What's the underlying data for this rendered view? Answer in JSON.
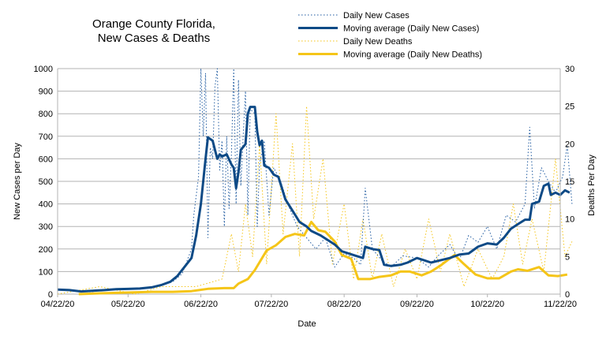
{
  "chart_data": {
    "type": "line",
    "title_line1": "Orange County Florida,",
    "title_line2": "New Cases & Deaths",
    "xlabel": "Date",
    "ylabel_left": "New Cases per Day",
    "ylabel_right": "Deaths Per Day",
    "x_ticks": [
      "04/22/20",
      "05/22/20",
      "06/22/20",
      "07/22/20",
      "08/22/20",
      "09/22/20",
      "10/22/20",
      "11/22/20"
    ],
    "y_left_ticks": [
      0,
      100,
      200,
      300,
      400,
      500,
      600,
      700,
      800,
      900,
      1000
    ],
    "y_right_ticks": [
      0,
      5,
      10,
      15,
      20,
      25,
      30
    ],
    "ylim_left": [
      0,
      1000
    ],
    "ylim_right": [
      0,
      30
    ],
    "grid": true,
    "legend_position": "top-right",
    "series": [
      {
        "name": "Daily New Cases",
        "axis": "left",
        "style": "dotted",
        "color": "#1f5aa0",
        "points": [
          [
            "2020-04-22",
            22
          ],
          [
            "2020-04-29",
            15
          ],
          [
            "2020-05-06",
            10
          ],
          [
            "2020-05-13",
            18
          ],
          [
            "2020-05-20",
            25
          ],
          [
            "2020-05-27",
            22
          ],
          [
            "2020-06-03",
            35
          ],
          [
            "2020-06-10",
            55
          ],
          [
            "2020-06-14",
            90
          ],
          [
            "2020-06-18",
            200
          ],
          [
            "2020-06-19",
            350
          ],
          [
            "2020-06-21",
            520
          ],
          [
            "2020-06-22",
            1000
          ],
          [
            "2020-06-23",
            700
          ],
          [
            "2020-06-24",
            980
          ],
          [
            "2020-06-25",
            250
          ],
          [
            "2020-06-26",
            650
          ],
          [
            "2020-06-27",
            600
          ],
          [
            "2020-06-28",
            920
          ],
          [
            "2020-06-29",
            1000
          ],
          [
            "2020-06-30",
            550
          ],
          [
            "2020-07-01",
            680
          ],
          [
            "2020-07-02",
            300
          ],
          [
            "2020-07-03",
            700
          ],
          [
            "2020-07-04",
            380
          ],
          [
            "2020-07-05",
            620
          ],
          [
            "2020-07-06",
            1000
          ],
          [
            "2020-07-07",
            400
          ],
          [
            "2020-07-08",
            950
          ],
          [
            "2020-07-09",
            480
          ],
          [
            "2020-07-10",
            700
          ],
          [
            "2020-07-11",
            900
          ],
          [
            "2020-07-12",
            350
          ],
          [
            "2020-07-13",
            820
          ],
          [
            "2020-07-15",
            800
          ],
          [
            "2020-07-16",
            300
          ],
          [
            "2020-07-17",
            580
          ],
          [
            "2020-07-19",
            680
          ],
          [
            "2020-07-21",
            350
          ],
          [
            "2020-07-23",
            560
          ],
          [
            "2020-07-26",
            500
          ],
          [
            "2020-07-29",
            400
          ],
          [
            "2020-08-02",
            300
          ],
          [
            "2020-08-06",
            250
          ],
          [
            "2020-08-10",
            200
          ],
          [
            "2020-08-14",
            250
          ],
          [
            "2020-08-18",
            120
          ],
          [
            "2020-08-22",
            180
          ],
          [
            "2020-08-26",
            160
          ],
          [
            "2020-08-29",
            130
          ],
          [
            "2020-08-31",
            470
          ],
          [
            "2020-09-03",
            200
          ],
          [
            "2020-09-07",
            150
          ],
          [
            "2020-09-11",
            120
          ],
          [
            "2020-09-16",
            170
          ],
          [
            "2020-09-22",
            160
          ],
          [
            "2020-09-27",
            120
          ],
          [
            "2020-10-01",
            170
          ],
          [
            "2020-10-06",
            220
          ],
          [
            "2020-10-10",
            150
          ],
          [
            "2020-10-14",
            260
          ],
          [
            "2020-10-18",
            230
          ],
          [
            "2020-10-22",
            300
          ],
          [
            "2020-10-26",
            200
          ],
          [
            "2020-10-30",
            350
          ],
          [
            "2020-11-03",
            320
          ],
          [
            "2020-11-07",
            400
          ],
          [
            "2020-11-09",
            740
          ],
          [
            "2020-11-11",
            380
          ],
          [
            "2020-11-14",
            560
          ],
          [
            "2020-11-17",
            500
          ],
          [
            "2020-11-20",
            450
          ],
          [
            "2020-11-23",
            520
          ],
          [
            "2020-11-25",
            660
          ],
          [
            "2020-11-27",
            400
          ]
        ]
      },
      {
        "name": "Moving average (Daily New Cases)",
        "axis": "left",
        "style": "solid",
        "color": "#0e4a86",
        "points": [
          [
            "2020-04-22",
            20
          ],
          [
            "2020-04-27",
            18
          ],
          [
            "2020-05-02",
            12
          ],
          [
            "2020-05-07",
            15
          ],
          [
            "2020-05-12",
            18
          ],
          [
            "2020-05-17",
            22
          ],
          [
            "2020-05-22",
            23
          ],
          [
            "2020-05-27",
            25
          ],
          [
            "2020-06-01",
            30
          ],
          [
            "2020-06-05",
            40
          ],
          [
            "2020-06-09",
            55
          ],
          [
            "2020-06-12",
            80
          ],
          [
            "2020-06-15",
            120
          ],
          [
            "2020-06-18",
            160
          ],
          [
            "2020-06-20",
            260
          ],
          [
            "2020-06-22",
            400
          ],
          [
            "2020-06-24",
            600
          ],
          [
            "2020-06-25",
            695
          ],
          [
            "2020-06-27",
            680
          ],
          [
            "2020-06-28",
            640
          ],
          [
            "2020-06-29",
            600
          ],
          [
            "2020-06-30",
            620
          ],
          [
            "2020-07-01",
            610
          ],
          [
            "2020-07-03",
            620
          ],
          [
            "2020-07-05",
            575
          ],
          [
            "2020-07-06",
            560
          ],
          [
            "2020-07-07",
            470
          ],
          [
            "2020-07-08",
            540
          ],
          [
            "2020-07-09",
            640
          ],
          [
            "2020-07-11",
            665
          ],
          [
            "2020-07-12",
            800
          ],
          [
            "2020-07-13",
            830
          ],
          [
            "2020-07-15",
            830
          ],
          [
            "2020-07-16",
            720
          ],
          [
            "2020-07-17",
            660
          ],
          [
            "2020-07-18",
            680
          ],
          [
            "2020-07-19",
            570
          ],
          [
            "2020-07-21",
            560
          ],
          [
            "2020-07-23",
            530
          ],
          [
            "2020-07-25",
            520
          ],
          [
            "2020-07-28",
            420
          ],
          [
            "2020-07-31",
            370
          ],
          [
            "2020-08-03",
            320
          ],
          [
            "2020-08-06",
            300
          ],
          [
            "2020-08-08",
            280
          ],
          [
            "2020-08-12",
            260
          ],
          [
            "2020-08-15",
            240
          ],
          [
            "2020-08-18",
            220
          ],
          [
            "2020-08-21",
            190
          ],
          [
            "2020-08-24",
            180
          ],
          [
            "2020-08-27",
            170
          ],
          [
            "2020-08-30",
            160
          ],
          [
            "2020-08-31",
            210
          ],
          [
            "2020-09-03",
            200
          ],
          [
            "2020-09-06",
            195
          ],
          [
            "2020-09-08",
            130
          ],
          [
            "2020-09-11",
            125
          ],
          [
            "2020-09-15",
            130
          ],
          [
            "2020-09-18",
            140
          ],
          [
            "2020-09-22",
            160
          ],
          [
            "2020-09-25",
            150
          ],
          [
            "2020-09-28",
            140
          ],
          [
            "2020-10-02",
            150
          ],
          [
            "2020-10-06",
            160
          ],
          [
            "2020-10-10",
            175
          ],
          [
            "2020-10-14",
            180
          ],
          [
            "2020-10-18",
            210
          ],
          [
            "2020-10-22",
            225
          ],
          [
            "2020-10-26",
            220
          ],
          [
            "2020-10-29",
            250
          ],
          [
            "2020-11-01",
            290
          ],
          [
            "2020-11-04",
            310
          ],
          [
            "2020-11-07",
            330
          ],
          [
            "2020-11-09",
            330
          ],
          [
            "2020-11-10",
            400
          ],
          [
            "2020-11-13",
            410
          ],
          [
            "2020-11-15",
            480
          ],
          [
            "2020-11-17",
            490
          ],
          [
            "2020-11-18",
            440
          ],
          [
            "2020-11-20",
            450
          ],
          [
            "2020-11-22",
            440
          ],
          [
            "2020-11-24",
            460
          ],
          [
            "2020-11-26",
            450
          ]
        ]
      },
      {
        "name": "Daily New Deaths",
        "axis": "right",
        "style": "dotted",
        "color": "#f5c518",
        "points": [
          [
            "2020-04-22",
            0
          ],
          [
            "2020-05-10",
            1
          ],
          [
            "2020-05-25",
            0
          ],
          [
            "2020-06-05",
            1
          ],
          [
            "2020-06-20",
            1
          ],
          [
            "2020-07-01",
            2
          ],
          [
            "2020-07-05",
            8
          ],
          [
            "2020-07-08",
            3
          ],
          [
            "2020-07-11",
            12
          ],
          [
            "2020-07-14",
            5
          ],
          [
            "2020-07-17",
            20
          ],
          [
            "2020-07-20",
            4
          ],
          [
            "2020-07-24",
            24
          ],
          [
            "2020-07-27",
            8
          ],
          [
            "2020-07-31",
            20
          ],
          [
            "2020-08-03",
            5
          ],
          [
            "2020-08-06",
            25
          ],
          [
            "2020-08-09",
            10
          ],
          [
            "2020-08-13",
            18
          ],
          [
            "2020-08-17",
            4
          ],
          [
            "2020-08-22",
            12
          ],
          [
            "2020-08-26",
            2
          ],
          [
            "2020-08-30",
            10
          ],
          [
            "2020-09-03",
            2
          ],
          [
            "2020-09-07",
            8
          ],
          [
            "2020-09-12",
            1
          ],
          [
            "2020-09-17",
            6
          ],
          [
            "2020-09-22",
            2
          ],
          [
            "2020-09-27",
            10
          ],
          [
            "2020-10-02",
            3
          ],
          [
            "2020-10-06",
            8
          ],
          [
            "2020-10-12",
            1
          ],
          [
            "2020-10-18",
            6
          ],
          [
            "2020-10-24",
            2
          ],
          [
            "2020-10-29",
            5
          ],
          [
            "2020-11-02",
            12
          ],
          [
            "2020-11-06",
            4
          ],
          [
            "2020-11-10",
            10
          ],
          [
            "2020-11-15",
            3
          ],
          [
            "2020-11-20",
            18
          ],
          [
            "2020-11-24",
            5
          ],
          [
            "2020-11-27",
            7
          ]
        ]
      },
      {
        "name": "Moving average (Daily New Deaths)",
        "axis": "right",
        "style": "solid",
        "color": "#f5c518",
        "points": [
          [
            "2020-05-01",
            0
          ],
          [
            "2020-05-10",
            0.1
          ],
          [
            "2020-05-20",
            0.2
          ],
          [
            "2020-06-01",
            0.3
          ],
          [
            "2020-06-10",
            0.3
          ],
          [
            "2020-06-18",
            0.4
          ],
          [
            "2020-06-25",
            0.7
          ],
          [
            "2020-07-02",
            0.8
          ],
          [
            "2020-07-06",
            0.8
          ],
          [
            "2020-07-08",
            1.4
          ],
          [
            "2020-07-12",
            2.0
          ],
          [
            "2020-07-15",
            3.2
          ],
          [
            "2020-07-20",
            5.8
          ],
          [
            "2020-07-24",
            6.5
          ],
          [
            "2020-07-28",
            7.6
          ],
          [
            "2020-08-01",
            8.0
          ],
          [
            "2020-08-05",
            7.8
          ],
          [
            "2020-08-08",
            9.6
          ],
          [
            "2020-08-11",
            8.5
          ],
          [
            "2020-08-14",
            8.3
          ],
          [
            "2020-08-18",
            7.0
          ],
          [
            "2020-08-21",
            5.2
          ],
          [
            "2020-08-25",
            4.7
          ],
          [
            "2020-08-28",
            2.0
          ],
          [
            "2020-09-02",
            2.0
          ],
          [
            "2020-09-06",
            2.3
          ],
          [
            "2020-09-11",
            2.5
          ],
          [
            "2020-09-15",
            3.0
          ],
          [
            "2020-09-19",
            3.0
          ],
          [
            "2020-09-24",
            2.5
          ],
          [
            "2020-09-28",
            3.0
          ],
          [
            "2020-10-02",
            3.8
          ],
          [
            "2020-10-05",
            4.5
          ],
          [
            "2020-10-08",
            5.2
          ],
          [
            "2020-10-12",
            4.0
          ],
          [
            "2020-10-17",
            2.6
          ],
          [
            "2020-10-22",
            2.1
          ],
          [
            "2020-10-27",
            2.1
          ],
          [
            "2020-11-01",
            3.0
          ],
          [
            "2020-11-04",
            3.3
          ],
          [
            "2020-11-08",
            3.1
          ],
          [
            "2020-11-13",
            3.6
          ],
          [
            "2020-11-17",
            2.5
          ],
          [
            "2020-11-21",
            2.4
          ],
          [
            "2020-11-25",
            2.6
          ]
        ]
      }
    ]
  }
}
